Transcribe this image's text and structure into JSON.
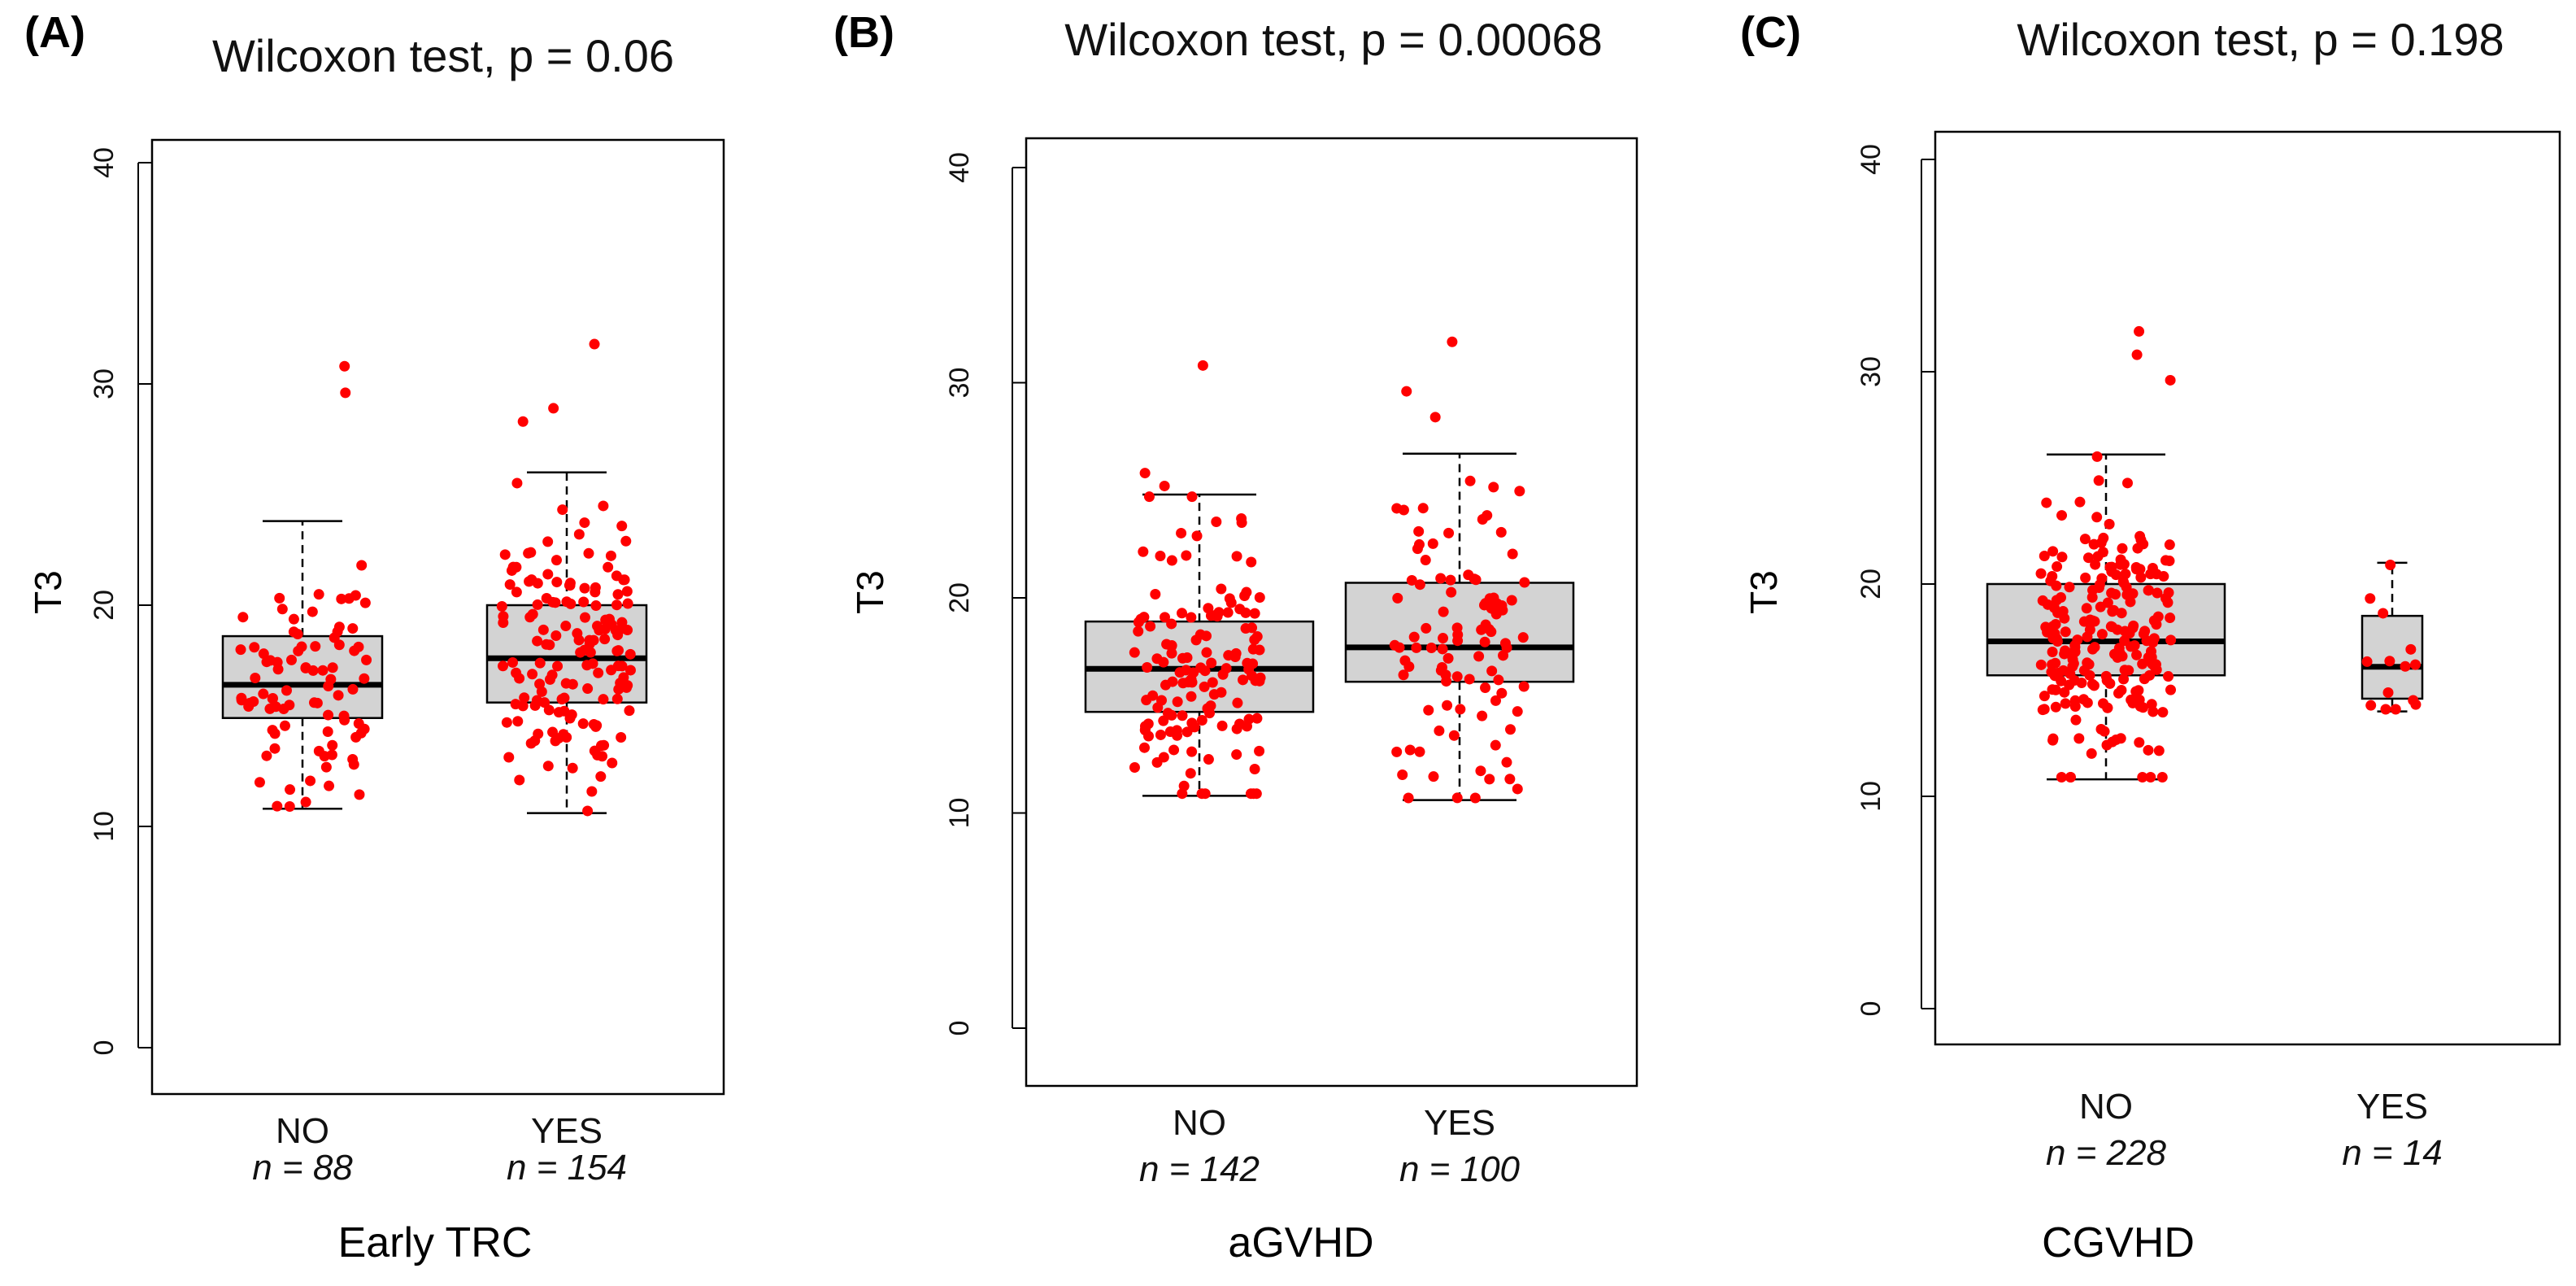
{
  "chart_data": [
    {
      "type": "boxplot",
      "panel_label": "(A)",
      "title": "Wilcoxon test, p = 0.06",
      "ylabel": "T3",
      "xlabel": "Early TRC",
      "ylim": [
        0,
        40
      ],
      "yticks": [
        "0",
        "10",
        "20",
        "30",
        "40"
      ],
      "point_color": "#ff0000",
      "box_fill": "#d3d3d3",
      "groups": [
        {
          "name": "NO",
          "n_label": "n = 88",
          "n": 88,
          "whisker_low": 10.8,
          "q1": 14.9,
          "median": 16.4,
          "q3": 18.6,
          "whisker_high": 23.8,
          "outliers": [
            29.6,
            30.8
          ]
        },
        {
          "name": "YES",
          "n_label": "n = 154",
          "n": 154,
          "whisker_low": 10.6,
          "q1": 15.6,
          "median": 17.6,
          "q3": 20.0,
          "whisker_high": 26.0,
          "outliers": [
            28.3,
            28.9,
            31.8
          ]
        }
      ]
    },
    {
      "type": "boxplot",
      "panel_label": "(B)",
      "title": "Wilcoxon test, p = 0.00068",
      "ylabel": "T3",
      "xlabel": "aGVHD",
      "ylim": [
        0,
        40
      ],
      "yticks": [
        "0",
        "10",
        "20",
        "30",
        "40"
      ],
      "point_color": "#ff0000",
      "box_fill": "#d3d3d3",
      "groups": [
        {
          "name": "NO",
          "n_label": "n = 142",
          "n": 142,
          "whisker_low": 10.8,
          "q1": 14.7,
          "median": 16.7,
          "q3": 18.9,
          "whisker_high": 24.8,
          "outliers": [
            25.2,
            25.8,
            30.8
          ]
        },
        {
          "name": "YES",
          "n_label": "n = 100",
          "n": 100,
          "whisker_low": 10.6,
          "q1": 16.1,
          "median": 17.7,
          "q3": 20.7,
          "whisker_high": 26.7,
          "outliers": [
            28.4,
            29.6,
            31.9
          ]
        }
      ]
    },
    {
      "type": "boxplot",
      "panel_label": "(C)",
      "title": "Wilcoxon test, p = 0.198",
      "ylabel": "T3",
      "xlabel": "CGVHD",
      "ylim": [
        0,
        40
      ],
      "yticks": [
        "0",
        "10",
        "20",
        "30",
        "40"
      ],
      "point_color": "#ff0000",
      "box_fill": "#d3d3d3",
      "groups": [
        {
          "name": "NO",
          "n_label": "n = 228",
          "n": 228,
          "whisker_low": 10.8,
          "q1": 15.7,
          "median": 17.3,
          "q3": 20.0,
          "whisker_high": 26.1,
          "outliers": [
            29.6,
            30.8,
            31.9
          ]
        },
        {
          "name": "YES",
          "n_label": "n = 14",
          "n": 14,
          "whisker_low": 14.0,
          "q1": 14.6,
          "median": 16.1,
          "q3": 18.5,
          "whisker_high": 21.0,
          "outliers": []
        }
      ]
    }
  ]
}
